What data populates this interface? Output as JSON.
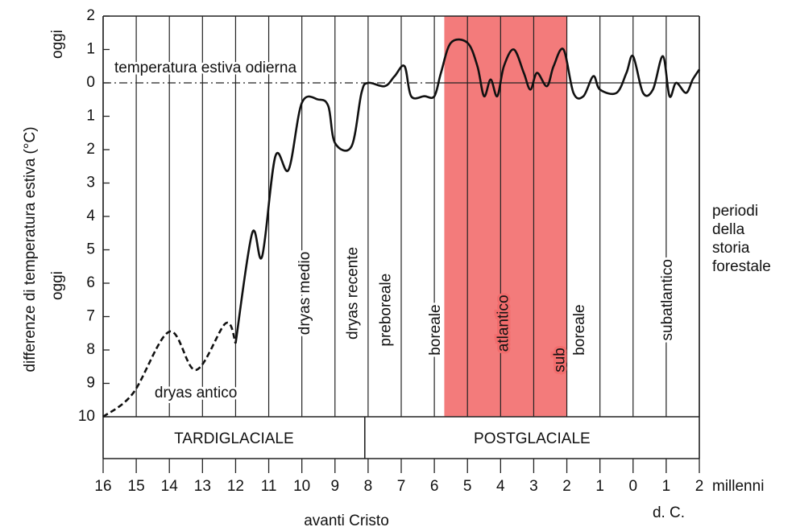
{
  "chart_data": {
    "type": "line",
    "ylabel": "differenze di temperatura estiva (°C)",
    "y_side_labels": [
      "oggi",
      "oggi"
    ],
    "xlabel": "millenni",
    "bc_label": "avanti Cristo",
    "ad_label": "d. C.",
    "right_note": [
      "periodi",
      "della",
      "storia",
      "forestale"
    ],
    "x": [
      -16,
      -15.1,
      -14,
      -13.2,
      -12.3,
      -12,
      -11.5,
      -11.2,
      -10.8,
      -10.4,
      -10,
      -9.5,
      -9.2,
      -9,
      -8.5,
      -8.2,
      -8,
      -7.5,
      -7.2,
      -6.9,
      -6.7,
      -6.3,
      -6,
      -5.8,
      -5.5,
      -5,
      -4.7,
      -4.5,
      -4.3,
      -4.1,
      -3.9,
      -3.6,
      -3.3,
      -3.1,
      -2.9,
      -2.6,
      -2.4,
      -2.1,
      -1.8,
      -1.5,
      -1.2,
      -1,
      -0.5,
      -0.2,
      0,
      0.3,
      0.6,
      0.9,
      1.1,
      1.3,
      1.6,
      1.8,
      2
    ],
    "series": [
      {
        "style": "dashed",
        "color": "#111111",
        "values": [
          -10,
          -9.3,
          -7.45,
          -8.6,
          -7.2,
          -7.8,
          null,
          null,
          null,
          null,
          null,
          null,
          null,
          null,
          null,
          null,
          null,
          null,
          null,
          null,
          null,
          null,
          null,
          null,
          null,
          null,
          null,
          null,
          null,
          null,
          null,
          null,
          null,
          null,
          null,
          null,
          null,
          null,
          null,
          null,
          null,
          null,
          null,
          null,
          null,
          null,
          null,
          null,
          null,
          null,
          null,
          null,
          null
        ]
      },
      {
        "style": "solid",
        "color": "#111111",
        "values": [
          null,
          null,
          null,
          null,
          null,
          -7.8,
          -4.5,
          -5.2,
          -2.2,
          -2.6,
          -0.6,
          -0.5,
          -0.7,
          -1.8,
          -1.9,
          -0.3,
          0,
          -0.1,
          0.2,
          0.5,
          -0.4,
          -0.4,
          -0.4,
          0.3,
          1.2,
          1.2,
          0.5,
          -0.4,
          0.1,
          -0.4,
          0.5,
          1.0,
          0.3,
          -0.2,
          0.3,
          -0.1,
          0.5,
          1.0,
          -0.3,
          -0.4,
          0.2,
          -0.2,
          -0.3,
          0.3,
          0.8,
          -0.3,
          -0.2,
          0.8,
          -0.4,
          0,
          -0.3,
          0.1,
          0.4
        ]
      }
    ],
    "xlim": [
      -16,
      2
    ],
    "ylim": [
      -10,
      2
    ],
    "xticks": [
      {
        "value": -16,
        "label": "16"
      },
      {
        "value": -15,
        "label": "15"
      },
      {
        "value": -14,
        "label": "14"
      },
      {
        "value": -13,
        "label": "13"
      },
      {
        "value": -12,
        "label": "12"
      },
      {
        "value": -11,
        "label": "11"
      },
      {
        "value": -10,
        "label": "10"
      },
      {
        "value": -9,
        "label": "9"
      },
      {
        "value": -8,
        "label": "8"
      },
      {
        "value": -7,
        "label": "7"
      },
      {
        "value": -6,
        "label": "6"
      },
      {
        "value": -5,
        "label": "5"
      },
      {
        "value": -4,
        "label": "4"
      },
      {
        "value": -3,
        "label": "3"
      },
      {
        "value": -2,
        "label": "2"
      },
      {
        "value": -1,
        "label": "1"
      },
      0,
      1,
      2
    ],
    "yticks": [
      2,
      1,
      0,
      {
        "value": -1,
        "label": "1"
      },
      {
        "value": -2,
        "label": "2"
      },
      {
        "value": -3,
        "label": "3"
      },
      {
        "value": -4,
        "label": "4"
      },
      {
        "value": -5,
        "label": "5"
      },
      {
        "value": -6,
        "label": "6"
      },
      {
        "value": -7,
        "label": "7"
      },
      {
        "value": -8,
        "label": "8"
      },
      {
        "value": -9,
        "label": "9"
      },
      {
        "value": -10,
        "label": "10"
      }
    ],
    "grid": true,
    "reference_line": {
      "value": 0,
      "label": "temperatura estiva odierna"
    },
    "highlight": {
      "xlim": [
        -5.7,
        -2
      ],
      "color": "#f26d6d"
    },
    "eras": [
      {
        "label": "TARDIGLACIALE",
        "xlim": [
          -16,
          -8.1
        ]
      },
      {
        "label": "POSTGLACIALE",
        "xlim": [
          -8.1,
          2
        ]
      }
    ],
    "periods": [
      {
        "label": "dryas antico",
        "x": -13.2,
        "y": -9.3,
        "vertical": false
      },
      {
        "label": "dryas medio",
        "x": -9.9,
        "y": -6.3,
        "vertical": true
      },
      {
        "label": "dryas recente",
        "x": -8.45,
        "y": -6.3,
        "vertical": true
      },
      {
        "label": "preboreale",
        "x": -7.45,
        "y": -6.8,
        "vertical": true
      },
      {
        "label": "boreale",
        "x": -5.95,
        "y": -7.4,
        "vertical": true
      },
      {
        "label": "atlantico",
        "x": -3.9,
        "y": -7.2,
        "vertical": true,
        "color": "#b3182b"
      },
      {
        "label": "sub",
        "x": -2.2,
        "y": -8.3,
        "vertical": true,
        "color": "#b3182b"
      },
      {
        "label": "boreale",
        "x": -1.6,
        "y": -7.4,
        "vertical": true
      },
      {
        "label": "subatlantico",
        "x": 1.05,
        "y": -6.5,
        "vertical": true
      }
    ]
  }
}
